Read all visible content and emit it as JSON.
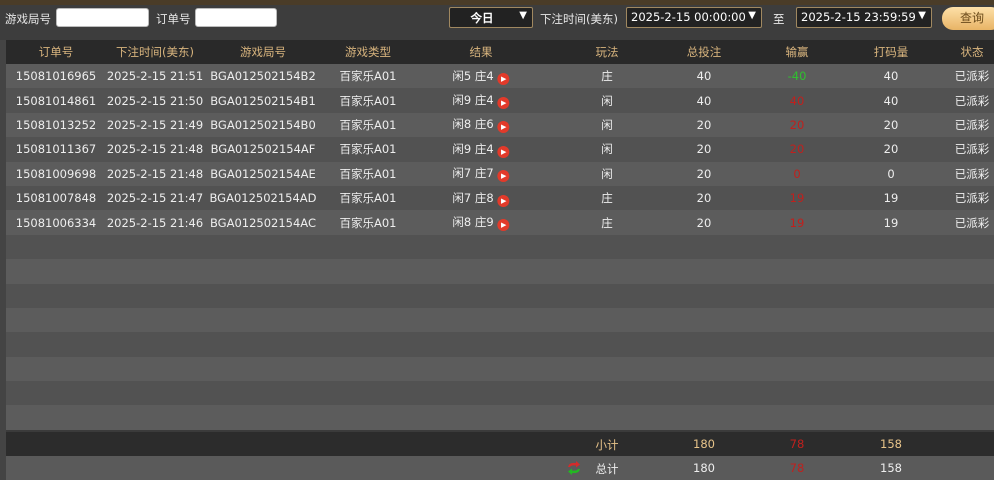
{
  "toolbar": {
    "round_label": "游戏局号",
    "round_value": "",
    "order_label": "订单号",
    "order_value": "",
    "period": "今日",
    "time_label": "下注时间(美东)",
    "start": "2025-2-15 00:00:00",
    "to_label": "至",
    "end": "2025-2-15 23:59:59",
    "query": "查询"
  },
  "colors": {
    "accent": "#e8b466",
    "win": "#2fc12f",
    "loss": "#c0201d"
  },
  "headers": [
    "订单号",
    "下注时间(美东)",
    "游戏局号",
    "游戏类型",
    "结果",
    "玩法",
    "总投注",
    "输赢",
    "打码量",
    "状态"
  ],
  "rows": [
    [
      "15081016965",
      "2025-2-15 21:51",
      "BGA012502154B2",
      "百家乐A01",
      "闲5 庄4",
      "庄",
      "40",
      "-40",
      "40",
      "已派彩"
    ],
    [
      "15081014861",
      "2025-2-15 21:50",
      "BGA012502154B1",
      "百家乐A01",
      "闲9 庄4",
      "闲",
      "40",
      "40",
      "40",
      "已派彩"
    ],
    [
      "15081013252",
      "2025-2-15 21:49",
      "BGA012502154B0",
      "百家乐A01",
      "闲8 庄6",
      "闲",
      "20",
      "20",
      "20",
      "已派彩"
    ],
    [
      "15081011367",
      "2025-2-15 21:48",
      "BGA012502154AF",
      "百家乐A01",
      "闲9 庄4",
      "闲",
      "20",
      "20",
      "20",
      "已派彩"
    ],
    [
      "15081009698",
      "2025-2-15 21:48",
      "BGA012502154AE",
      "百家乐A01",
      "闲7 庄7",
      "闲",
      "20",
      "0",
      "0",
      "已派彩"
    ],
    [
      "15081007848",
      "2025-2-15 21:47",
      "BGA012502154AD",
      "百家乐A01",
      "闲7 庄8",
      "庄",
      "20",
      "19",
      "19",
      "已派彩"
    ],
    [
      "15081006334",
      "2025-2-15 21:46",
      "BGA012502154AC",
      "百家乐A01",
      "闲8 庄9",
      "庄",
      "20",
      "19",
      "19",
      "已派彩"
    ]
  ],
  "subtotal": {
    "label": "小计",
    "bet": "180",
    "winloss": "78",
    "turnover": "158"
  },
  "total": {
    "label": "总计",
    "bet": "180",
    "winloss": "78",
    "turnover": "158"
  }
}
